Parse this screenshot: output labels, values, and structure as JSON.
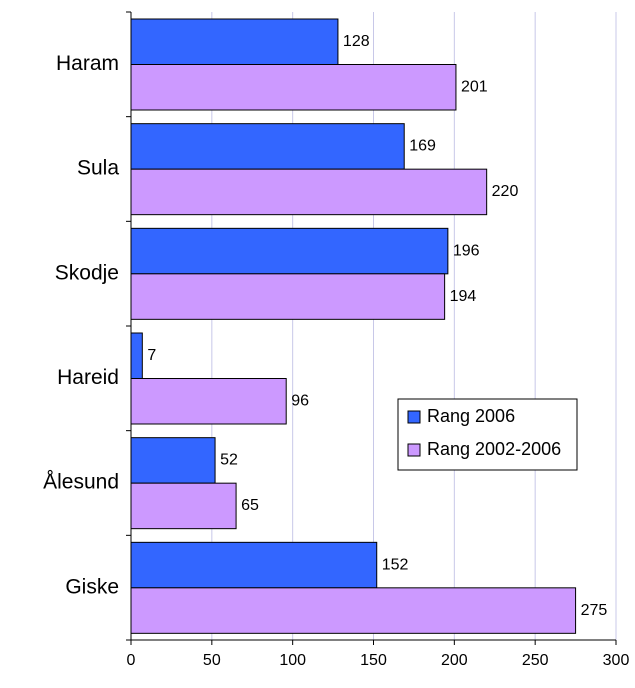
{
  "chart_data": {
    "type": "bar",
    "orientation": "horizontal",
    "categories": [
      "Haram",
      "Sula",
      "Skodje",
      "Hareid",
      "Ålesund",
      "Giske"
    ],
    "series": [
      {
        "name": "Rang 2006",
        "color": "#3366ff",
        "values": [
          128,
          169,
          196,
          7,
          52,
          152
        ]
      },
      {
        "name": "Rang 2002-2006",
        "color": "#cc99ff",
        "values": [
          201,
          220,
          194,
          96,
          65,
          275
        ]
      }
    ],
    "xlim": [
      0,
      300
    ],
    "xticks": [
      0,
      50,
      100,
      150,
      200,
      250,
      300
    ],
    "grid": true,
    "legend": "lower right"
  }
}
